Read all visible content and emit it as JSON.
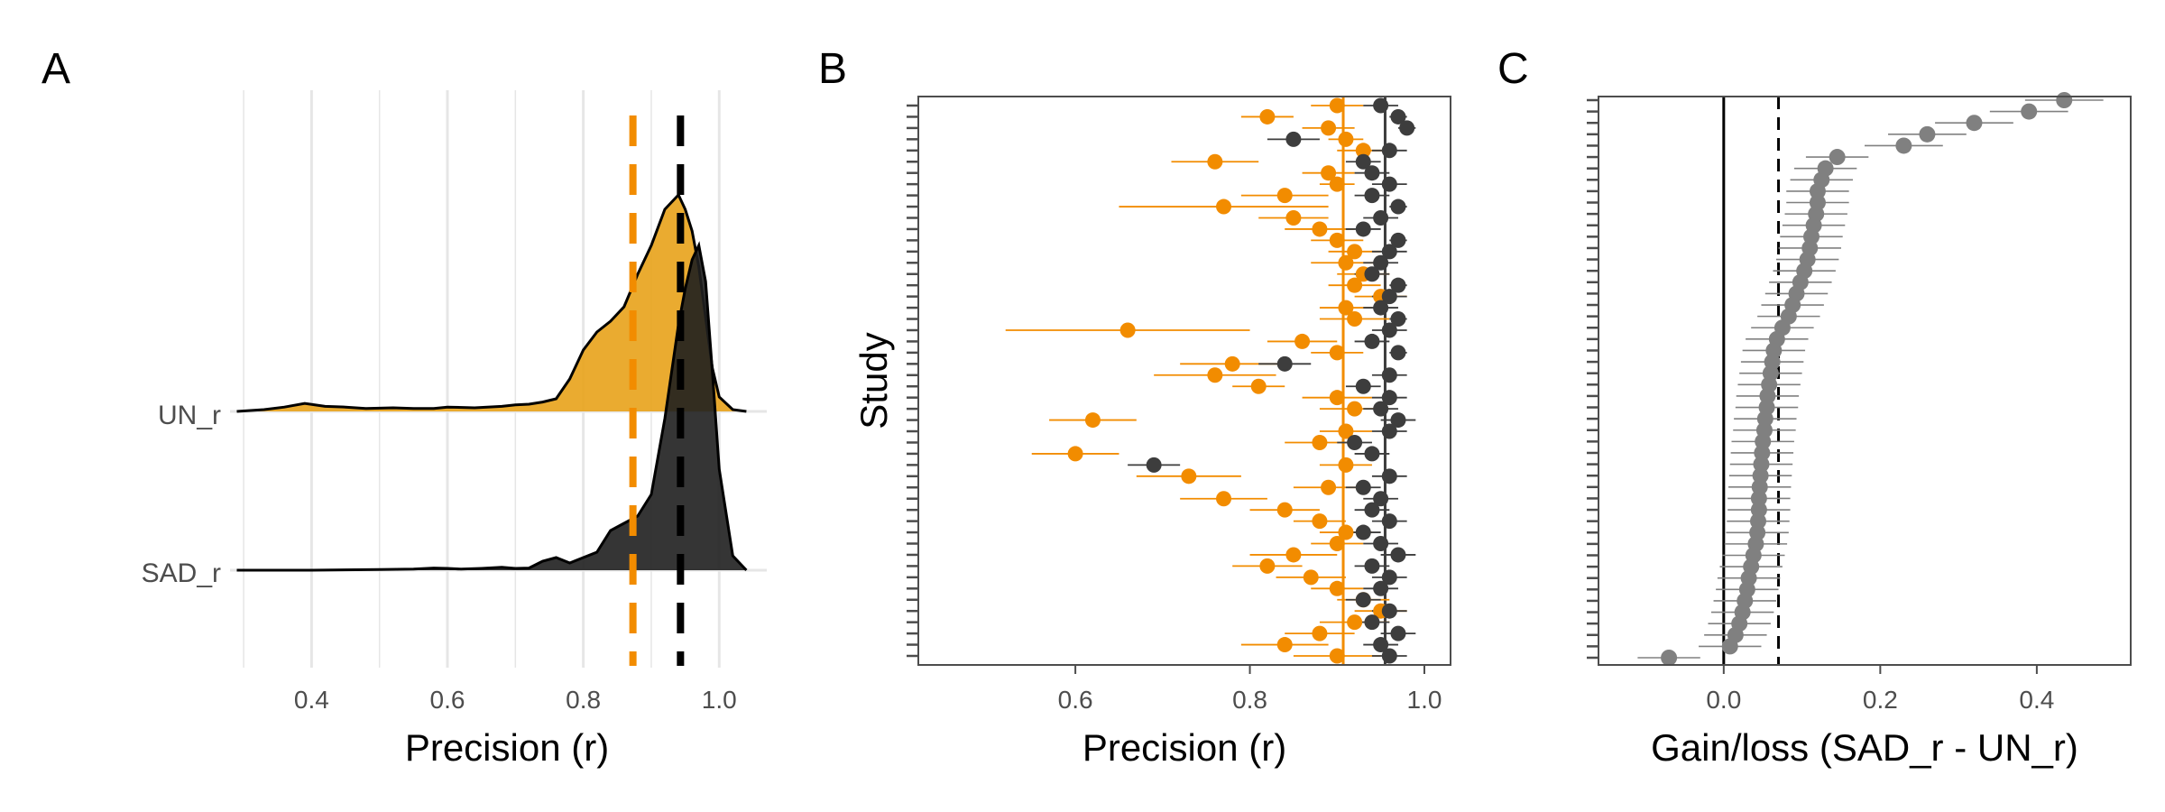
{
  "colors": {
    "un": "#f28c00",
    "un_fill": "#e8a21a",
    "sad": "#3d3d3d",
    "sad_fill": "#1f1f1f",
    "gain": "#808080",
    "frame": "#4d4d4d",
    "grid": "#e6e6e6"
  },
  "chart_data": [
    {
      "panel": "A",
      "type": "area",
      "subtype": "ridgeline-density",
      "xlabel": "Precision (r)",
      "xlim": [
        0.28,
        1.07
      ],
      "xticks": [
        0.4,
        0.6,
        0.8,
        1.0
      ],
      "xtick_labels": [
        "0.4",
        "0.6",
        "0.8",
        "1.0"
      ],
      "grid": "vertical-major-and-minor",
      "categories": [
        "UN_r",
        "SAD_r"
      ],
      "series": [
        {
          "name": "UN_r",
          "x": [
            0.29,
            0.33,
            0.36,
            0.39,
            0.42,
            0.45,
            0.48,
            0.52,
            0.55,
            0.58,
            0.6,
            0.64,
            0.68,
            0.7,
            0.72,
            0.74,
            0.76,
            0.78,
            0.8,
            0.82,
            0.84,
            0.86,
            0.88,
            0.9,
            0.92,
            0.94,
            0.95,
            0.96,
            0.97,
            0.98,
            0.99,
            1.0,
            1.02,
            1.04
          ],
          "density": [
            0.0,
            0.05,
            0.12,
            0.22,
            0.14,
            0.12,
            0.08,
            0.1,
            0.08,
            0.08,
            0.12,
            0.1,
            0.14,
            0.18,
            0.2,
            0.26,
            0.35,
            0.9,
            1.7,
            2.2,
            2.5,
            2.9,
            3.8,
            4.6,
            5.6,
            6.0,
            5.6,
            5.0,
            4.0,
            2.6,
            1.2,
            0.4,
            0.05,
            0.0
          ],
          "dashed_line_at": 0.873
        },
        {
          "name": "SAD_r",
          "x": [
            0.29,
            0.4,
            0.5,
            0.55,
            0.58,
            0.6,
            0.62,
            0.65,
            0.68,
            0.7,
            0.72,
            0.74,
            0.76,
            0.78,
            0.8,
            0.82,
            0.84,
            0.86,
            0.88,
            0.9,
            0.92,
            0.94,
            0.95,
            0.96,
            0.97,
            0.98,
            0.99,
            1.0,
            1.02,
            1.04
          ],
          "density": [
            0.0,
            0.0,
            0.02,
            0.03,
            0.06,
            0.05,
            0.03,
            0.05,
            0.08,
            0.05,
            0.06,
            0.25,
            0.35,
            0.2,
            0.35,
            0.5,
            1.1,
            1.3,
            1.5,
            2.1,
            4.2,
            6.8,
            7.8,
            8.6,
            9.0,
            8.0,
            5.5,
            2.8,
            0.4,
            0.0
          ],
          "dashed_line_at": 0.943
        }
      ]
    },
    {
      "panel": "B",
      "type": "scatter",
      "subtype": "forest-plot",
      "xlabel": "Precision (r)",
      "ylabel": "Study",
      "xlim": [
        0.42,
        1.03
      ],
      "xticks": [
        0.6,
        0.8,
        1.0
      ],
      "xtick_labels": [
        "0.6",
        "0.8",
        "1.0"
      ],
      "n_studies": 50,
      "vertical_lines": [
        {
          "series": "UN_r",
          "x": 0.907
        },
        {
          "series": "SAD_r",
          "x": 0.955
        }
      ],
      "series": [
        {
          "name": "UN_r",
          "values": [
            0.9,
            0.82,
            0.89,
            0.91,
            0.93,
            0.76,
            0.89,
            0.9,
            0.84,
            0.77,
            0.85,
            0.88,
            0.9,
            0.92,
            0.91,
            0.93,
            0.92,
            0.95,
            0.91,
            0.92,
            0.66,
            0.86,
            0.9,
            0.78,
            0.76,
            0.81,
            0.9,
            0.92,
            0.62,
            0.91,
            0.88,
            0.6,
            0.91,
            0.73,
            0.89,
            0.77,
            0.84,
            0.88,
            0.91,
            0.9,
            0.85,
            0.82,
            0.87,
            0.9,
            0.93,
            0.95,
            0.92,
            0.88,
            0.84,
            0.9
          ],
          "ci_halfwidth": [
            0.03,
            0.03,
            0.03,
            0.02,
            0.03,
            0.05,
            0.03,
            0.02,
            0.05,
            0.12,
            0.04,
            0.04,
            0.03,
            0.03,
            0.04,
            0.03,
            0.03,
            0.03,
            0.03,
            0.04,
            0.14,
            0.04,
            0.03,
            0.06,
            0.07,
            0.03,
            0.04,
            0.04,
            0.05,
            0.03,
            0.04,
            0.05,
            0.03,
            0.06,
            0.04,
            0.05,
            0.04,
            0.03,
            0.03,
            0.03,
            0.05,
            0.04,
            0.04,
            0.03,
            0.03,
            0.03,
            0.04,
            0.04,
            0.05,
            0.05
          ]
        },
        {
          "name": "SAD_r",
          "values": [
            0.95,
            0.97,
            0.98,
            0.85,
            0.96,
            0.93,
            0.94,
            0.96,
            0.94,
            0.97,
            0.95,
            0.93,
            0.97,
            0.96,
            0.95,
            0.94,
            0.97,
            0.96,
            0.95,
            0.97,
            0.96,
            0.94,
            0.97,
            0.84,
            0.96,
            0.93,
            0.96,
            0.95,
            0.97,
            0.96,
            0.92,
            0.94,
            0.69,
            0.96,
            0.93,
            0.95,
            0.94,
            0.96,
            0.93,
            0.95,
            0.97,
            0.94,
            0.96,
            0.95,
            0.93,
            0.96,
            0.94,
            0.97,
            0.95,
            0.96
          ],
          "ci_halfwidth": [
            0.02,
            0.01,
            0.01,
            0.03,
            0.02,
            0.02,
            0.02,
            0.02,
            0.02,
            0.01,
            0.02,
            0.02,
            0.01,
            0.02,
            0.02,
            0.02,
            0.01,
            0.02,
            0.02,
            0.01,
            0.02,
            0.02,
            0.01,
            0.03,
            0.02,
            0.02,
            0.02,
            0.02,
            0.02,
            0.02,
            0.02,
            0.02,
            0.03,
            0.02,
            0.02,
            0.02,
            0.02,
            0.02,
            0.02,
            0.02,
            0.02,
            0.02,
            0.02,
            0.02,
            0.02,
            0.02,
            0.02,
            0.02,
            0.02,
            0.02
          ]
        }
      ]
    },
    {
      "panel": "C",
      "type": "scatter",
      "subtype": "sorted-forest-plot",
      "xlabel": "Gain/loss (SAD_r - UN_r)",
      "xlim": [
        -0.16,
        0.52
      ],
      "xticks": [
        0.0,
        0.2,
        0.4
      ],
      "xtick_labels": [
        "0.0",
        "0.2",
        "0.4"
      ],
      "vertical_lines": [
        {
          "style": "solid",
          "x": 0.0
        },
        {
          "style": "dashed",
          "x": 0.07
        }
      ],
      "series": [
        {
          "name": "gain",
          "values": [
            0.435,
            0.39,
            0.32,
            0.26,
            0.23,
            0.145,
            0.13,
            0.125,
            0.12,
            0.12,
            0.118,
            0.115,
            0.112,
            0.11,
            0.107,
            0.103,
            0.098,
            0.093,
            0.088,
            0.083,
            0.075,
            0.068,
            0.064,
            0.062,
            0.06,
            0.058,
            0.056,
            0.055,
            0.053,
            0.052,
            0.05,
            0.049,
            0.048,
            0.047,
            0.046,
            0.045,
            0.045,
            0.044,
            0.043,
            0.041,
            0.038,
            0.035,
            0.032,
            0.03,
            0.027,
            0.024,
            0.02,
            0.015,
            0.008,
            -0.07
          ],
          "ci_halfwidth": [
            0.05,
            0.05,
            0.05,
            0.05,
            0.05,
            0.04,
            0.04,
            0.04,
            0.04,
            0.04,
            0.04,
            0.04,
            0.04,
            0.04,
            0.04,
            0.04,
            0.04,
            0.04,
            0.04,
            0.04,
            0.04,
            0.04,
            0.04,
            0.04,
            0.04,
            0.04,
            0.04,
            0.04,
            0.04,
            0.04,
            0.04,
            0.04,
            0.04,
            0.04,
            0.04,
            0.04,
            0.04,
            0.04,
            0.04,
            0.04,
            0.04,
            0.04,
            0.04,
            0.04,
            0.04,
            0.04,
            0.04,
            0.04,
            0.04,
            0.04
          ]
        }
      ]
    }
  ],
  "panels": {
    "A": {
      "letter": "A",
      "xlabel": "Precision (r)",
      "cat1": "UN_r",
      "cat2": "SAD_r",
      "t1": "0.4",
      "t2": "0.6",
      "t3": "0.8",
      "t4": "1.0"
    },
    "B": {
      "letter": "B",
      "xlabel": "Precision (r)",
      "ylabel": "Study",
      "t1": "0.6",
      "t2": "0.8",
      "t3": "1.0"
    },
    "C": {
      "letter": "C",
      "xlabel": "Gain/loss (SAD_r - UN_r)",
      "t1": "0.0",
      "t2": "0.2",
      "t3": "0.4"
    }
  }
}
